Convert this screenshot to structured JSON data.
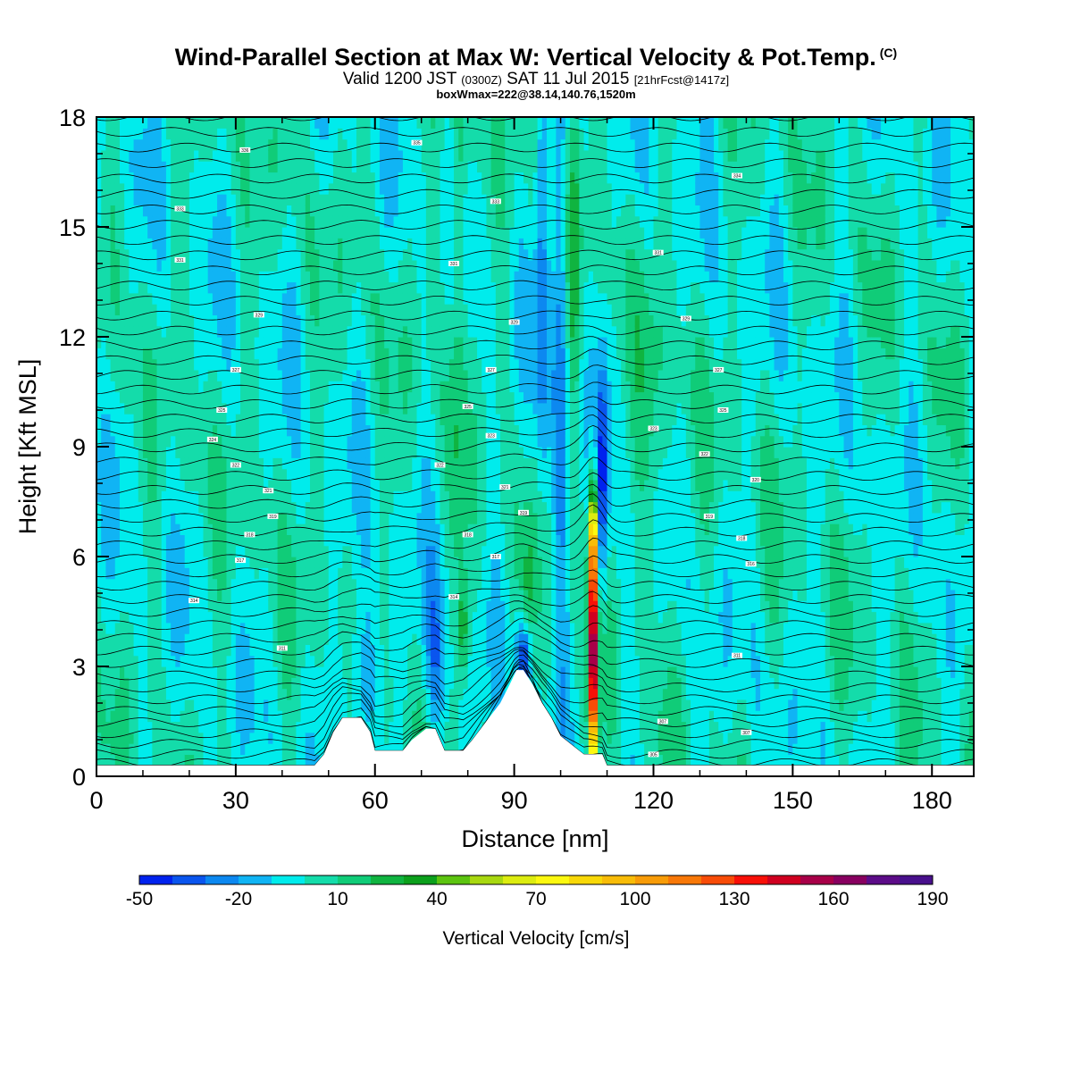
{
  "title": {
    "main": "Wind-Parallel Section at Max W: Vertical Velocity & Pot.Temp.",
    "copyright": "(C)",
    "valid_prefix": "Valid 1200 JST",
    "valid_utc": "(0300Z)",
    "valid_date": "SAT 11 Jul 2015",
    "valid_fcst": "[21hrFcst@1417z]",
    "box": "boxWmax=222@38.14,140.76,1520m"
  },
  "chart_data": {
    "type": "heatmap",
    "xlabel": "Distance [nm]",
    "ylabel": "Height [Kft MSL]",
    "xlim": [
      0,
      189
    ],
    "ylim": [
      0,
      18
    ],
    "x_ticks": [
      "0",
      "30",
      "60",
      "90",
      "120",
      "150",
      "180"
    ],
    "y_ticks": [
      "0",
      "3",
      "6",
      "9",
      "12",
      "15",
      "18"
    ],
    "colorbar": {
      "title": "Vertical Velocity [cm/s]",
      "tick_labels": [
        "-50",
        "-20",
        "10",
        "40",
        "70",
        "100",
        "130",
        "160",
        "190"
      ],
      "min": -50,
      "max": 190,
      "step": 10,
      "colors": [
        "#0022ee",
        "#0a55ee",
        "#0c88f0",
        "#10b4f4",
        "#00ecec",
        "#14dcaa",
        "#10cc78",
        "#10b440",
        "#0ca01c",
        "#5cc410",
        "#a8d810",
        "#dcec10",
        "#fcf810",
        "#f8d808",
        "#f8bc08",
        "#f89c08",
        "#f87808",
        "#f84c08",
        "#f81008",
        "#d00020",
        "#a80048",
        "#880060",
        "#5c0c88",
        "#48108c"
      ]
    },
    "terrain_kft": [
      [
        0,
        0.3
      ],
      [
        47,
        0.3
      ],
      [
        49,
        0.6
      ],
      [
        50,
        0.9
      ],
      [
        51,
        1.2
      ],
      [
        53,
        1.6
      ],
      [
        57,
        1.6
      ],
      [
        59,
        1.2
      ],
      [
        60,
        0.7
      ],
      [
        66,
        0.7
      ],
      [
        68,
        1.0
      ],
      [
        71,
        1.3
      ],
      [
        73,
        1.3
      ],
      [
        75,
        0.7
      ],
      [
        79,
        0.7
      ],
      [
        81,
        1.0
      ],
      [
        84,
        1.5
      ],
      [
        87,
        2.0
      ],
      [
        89,
        2.5
      ],
      [
        90.5,
        2.9
      ],
      [
        92,
        2.9
      ],
      [
        94,
        2.5
      ],
      [
        96,
        2.0
      ],
      [
        98,
        1.6
      ],
      [
        100,
        1.1
      ],
      [
        102,
        0.9
      ],
      [
        105,
        0.6
      ],
      [
        109,
        0.6
      ],
      [
        110,
        0.3
      ],
      [
        189,
        0.3
      ]
    ],
    "w_features": [
      {
        "x": 107,
        "z": 3.5,
        "sx": 0.6,
        "sz": 2.4,
        "w": 200
      },
      {
        "x": 107,
        "z": 6.5,
        "sx": 0.5,
        "sz": 0.8,
        "w": 55
      },
      {
        "x": 109,
        "z": 8.0,
        "sx": 0.8,
        "sz": 2.2,
        "w": -42
      },
      {
        "x": 92,
        "z": 3.3,
        "sx": 1.1,
        "sz": 0.8,
        "w": -48
      },
      {
        "x": 57,
        "z": 2.5,
        "sx": 2.6,
        "sz": 1.5,
        "w": -26
      },
      {
        "x": 73,
        "z": 3.2,
        "sx": 1.5,
        "sz": 1.6,
        "w": -25
      },
      {
        "x": 79,
        "z": 4.0,
        "sx": 1.0,
        "sz": 1.0,
        "w": 28
      },
      {
        "x": 100,
        "z": 12,
        "sx": 1.2,
        "sz": 6,
        "w": -28
      },
      {
        "x": 96,
        "z": 14,
        "sx": 1.0,
        "sz": 5,
        "w": -22
      },
      {
        "x": 93,
        "z": 4.8,
        "sx": 1.0,
        "sz": 1.4,
        "w": 16
      },
      {
        "x": 78,
        "z": 15,
        "sx": 1.2,
        "sz": 5,
        "w": 22
      },
      {
        "x": 103,
        "z": 15,
        "sx": 1.0,
        "sz": 4,
        "w": 20
      },
      {
        "x": 120,
        "z": 9,
        "sx": 2.5,
        "sz": 3,
        "w": 14
      }
    ],
    "theta_contour_labels": [
      {
        "x": 32,
        "z": 17.1,
        "text": "336"
      },
      {
        "x": 69,
        "z": 17.3,
        "text": "335"
      },
      {
        "x": 18,
        "z": 15.5,
        "text": "333"
      },
      {
        "x": 86,
        "z": 15.7,
        "text": "333"
      },
      {
        "x": 138,
        "z": 16.4,
        "text": "334"
      },
      {
        "x": 18,
        "z": 14.1,
        "text": "331"
      },
      {
        "x": 77,
        "z": 14.0,
        "text": "331"
      },
      {
        "x": 121,
        "z": 14.3,
        "text": "331"
      },
      {
        "x": 35,
        "z": 12.6,
        "text": "329"
      },
      {
        "x": 90,
        "z": 12.4,
        "text": "329"
      },
      {
        "x": 127,
        "z": 12.5,
        "text": "329"
      },
      {
        "x": 30,
        "z": 11.1,
        "text": "327"
      },
      {
        "x": 85,
        "z": 11.1,
        "text": "327"
      },
      {
        "x": 134,
        "z": 11.1,
        "text": "327"
      },
      {
        "x": 27,
        "z": 10.0,
        "text": "325"
      },
      {
        "x": 80,
        "z": 10.1,
        "text": "325"
      },
      {
        "x": 135,
        "z": 10.0,
        "text": "325"
      },
      {
        "x": 25,
        "z": 9.2,
        "text": "324"
      },
      {
        "x": 85,
        "z": 9.3,
        "text": "323"
      },
      {
        "x": 120,
        "z": 9.5,
        "text": "323"
      },
      {
        "x": 30,
        "z": 8.5,
        "text": "322"
      },
      {
        "x": 74,
        "z": 8.5,
        "text": "322"
      },
      {
        "x": 131,
        "z": 8.8,
        "text": "322"
      },
      {
        "x": 37,
        "z": 7.8,
        "text": "321"
      },
      {
        "x": 88,
        "z": 7.9,
        "text": "321"
      },
      {
        "x": 142,
        "z": 8.1,
        "text": "320"
      },
      {
        "x": 38,
        "z": 7.1,
        "text": "319"
      },
      {
        "x": 92,
        "z": 7.2,
        "text": "319"
      },
      {
        "x": 132,
        "z": 7.1,
        "text": "319"
      },
      {
        "x": 33,
        "z": 6.6,
        "text": "318"
      },
      {
        "x": 80,
        "z": 6.6,
        "text": "318"
      },
      {
        "x": 139,
        "z": 6.5,
        "text": "318"
      },
      {
        "x": 31,
        "z": 5.9,
        "text": "317"
      },
      {
        "x": 86,
        "z": 6.0,
        "text": "317"
      },
      {
        "x": 141,
        "z": 5.8,
        "text": "316"
      },
      {
        "x": 21,
        "z": 4.8,
        "text": "314"
      },
      {
        "x": 77,
        "z": 4.9,
        "text": "314"
      },
      {
        "x": 40,
        "z": 3.5,
        "text": "311"
      },
      {
        "x": 138,
        "z": 3.3,
        "text": "311"
      },
      {
        "x": 122,
        "z": 1.5,
        "text": "307"
      },
      {
        "x": 140,
        "z": 1.2,
        "text": "307"
      },
      {
        "x": 120,
        "z": 0.6,
        "text": "305"
      }
    ]
  }
}
